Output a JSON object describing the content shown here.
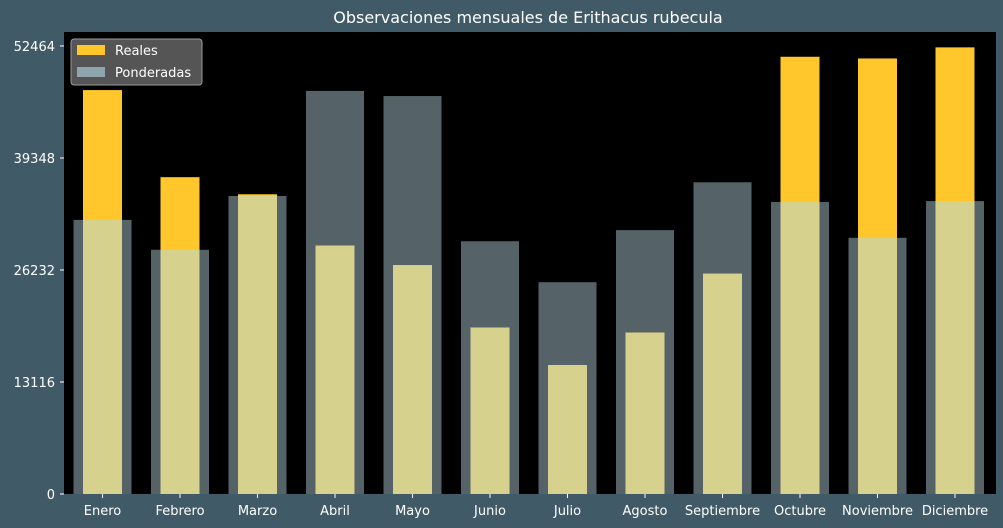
{
  "chart_data": {
    "type": "bar",
    "title": "Observaciones mensuales de Erithacus rubecula",
    "xlabel": "",
    "ylabel": "",
    "categories": [
      "Enero",
      "Febrero",
      "Marzo",
      "Abril",
      "Mayo",
      "Junio",
      "Julio",
      "Agosto",
      "Septiembre",
      "Octubre",
      "Noviembre",
      "Diciembre"
    ],
    "series": [
      {
        "name": "Reales",
        "color": "#ffc72c",
        "values": [
          47300,
          37100,
          35100,
          29100,
          26800,
          19500,
          15100,
          18900,
          25800,
          51200,
          51000,
          52300
        ]
      },
      {
        "name": "Ponderadas",
        "color": "#8ea5ad",
        "values": [
          32100,
          28600,
          34900,
          47200,
          46600,
          29600,
          24800,
          30900,
          36500,
          34200,
          30000,
          34300
        ]
      }
    ],
    "yticks": [
      0,
      13116,
      26232,
      39348,
      52464
    ],
    "ytick_labels": [
      "0",
      "13116",
      "26232",
      "39348",
      "52464"
    ],
    "ylim": [
      0,
      54100
    ],
    "legend": "top-left",
    "grid": false,
    "background": "#000000",
    "figure_background": "#415a67",
    "overlap_color": "#d6d18c"
  }
}
